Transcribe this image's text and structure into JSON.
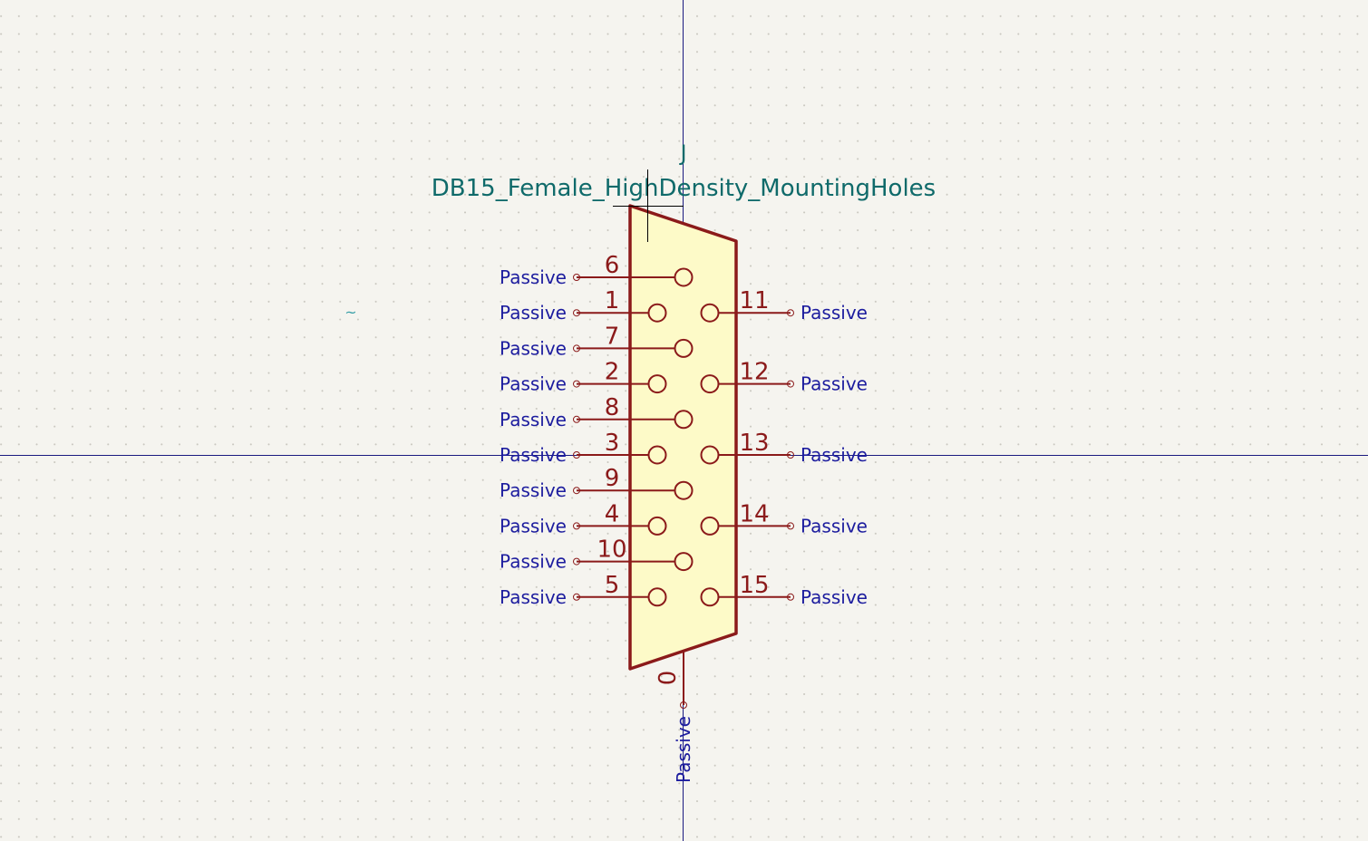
{
  "symbol": {
    "reference": "J",
    "value": "DB15_Female_HighDensity_MountingHoles",
    "pins": [
      {
        "number": "6",
        "type": "Passive",
        "side": "left"
      },
      {
        "number": "1",
        "type": "Passive",
        "side": "left"
      },
      {
        "number": "7",
        "type": "Passive",
        "side": "left"
      },
      {
        "number": "2",
        "type": "Passive",
        "side": "left"
      },
      {
        "number": "8",
        "type": "Passive",
        "side": "left"
      },
      {
        "number": "3",
        "type": "Passive",
        "side": "left"
      },
      {
        "number": "9",
        "type": "Passive",
        "side": "left"
      },
      {
        "number": "4",
        "type": "Passive",
        "side": "left"
      },
      {
        "number": "10",
        "type": "Passive",
        "side": "left"
      },
      {
        "number": "5",
        "type": "Passive",
        "side": "left"
      },
      {
        "number": "11",
        "type": "Passive",
        "side": "right"
      },
      {
        "number": "12",
        "type": "Passive",
        "side": "right"
      },
      {
        "number": "13",
        "type": "Passive",
        "side": "right"
      },
      {
        "number": "14",
        "type": "Passive",
        "side": "right"
      },
      {
        "number": "15",
        "type": "Passive",
        "side": "right"
      },
      {
        "number": "0",
        "type": "Passive",
        "side": "bottom"
      }
    ],
    "stray_mark": "~"
  },
  "colors": {
    "background": "#f5f4ef",
    "body_outline": "#8b1a1a",
    "body_fill": "#fdfac8",
    "pin_number": "#8b1a1a",
    "pin_type": "#1c1c9e",
    "field_text": "#0f6a6a",
    "axis": "#1a1a80"
  }
}
